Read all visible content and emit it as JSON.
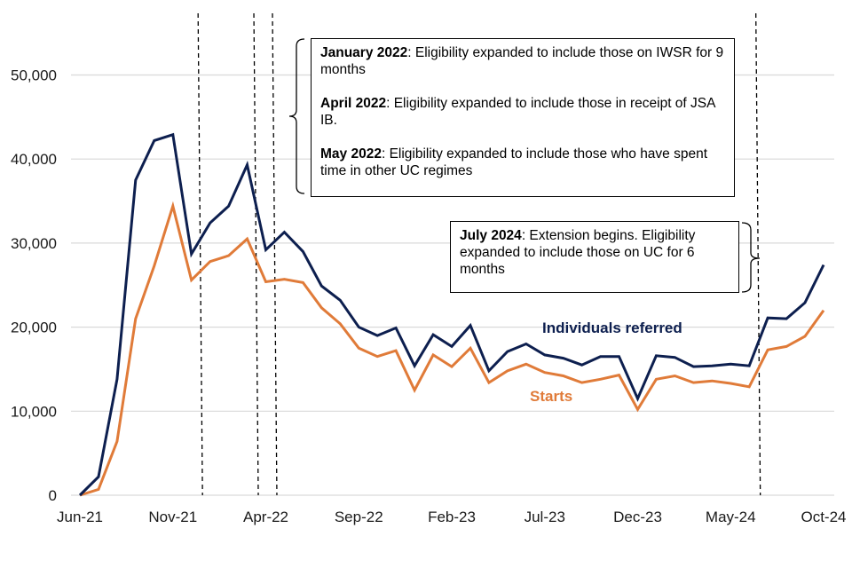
{
  "chart_data": {
    "type": "line",
    "title": "",
    "xlabel": "",
    "ylabel": "",
    "ylim": [
      0,
      55000
    ],
    "yticks": [
      0,
      10000,
      20000,
      30000,
      40000,
      50000
    ],
    "ytick_labels": [
      "0",
      "10,000",
      "20,000",
      "30,000",
      "40,000",
      "50,000"
    ],
    "grid": true,
    "x": [
      "Jun-21",
      "Jul-21",
      "Aug-21",
      "Sep-21",
      "Oct-21",
      "Nov-21",
      "Dec-21",
      "Jan-22",
      "Feb-22",
      "Mar-22",
      "Apr-22",
      "May-22",
      "Jun-22",
      "Jul-22",
      "Aug-22",
      "Sep-22",
      "Oct-22",
      "Nov-22",
      "Dec-22",
      "Jan-23",
      "Feb-23",
      "Mar-23",
      "Apr-23",
      "May-23",
      "Jun-23",
      "Jul-23",
      "Aug-23",
      "Sep-23",
      "Oct-23",
      "Nov-23",
      "Dec-23",
      "Jan-24",
      "Feb-24",
      "Mar-24",
      "Apr-24",
      "May-24",
      "Jun-24",
      "Jul-24",
      "Aug-24",
      "Sep-24",
      "Oct-24"
    ],
    "xtick_labels": [
      "Jun-21",
      "Nov-21",
      "Apr-22",
      "Sep-22",
      "Feb-23",
      "Jul-23",
      "Dec-23",
      "May-24",
      "Oct-24"
    ],
    "series": [
      {
        "name": "Individuals referred",
        "color": "#0d1f4f",
        "values": [
          0,
          2200,
          13800,
          37500,
          42200,
          42900,
          28700,
          32400,
          34400,
          39300,
          29200,
          31300,
          29000,
          24900,
          23200,
          20000,
          19000,
          19900,
          15400,
          19100,
          17700,
          20200,
          14800,
          17100,
          18000,
          16700,
          16300,
          15500,
          16500,
          16500,
          11500,
          16600,
          16400,
          15300,
          15400,
          15600,
          15400,
          21100,
          21000,
          22900,
          27400
        ]
      },
      {
        "name": "Starts",
        "color": "#e07b39",
        "values": [
          0,
          700,
          6400,
          21000,
          27300,
          34400,
          25600,
          27800,
          28500,
          30500,
          25400,
          25700,
          25300,
          22300,
          20400,
          17500,
          16500,
          17200,
          12500,
          16700,
          15300,
          17500,
          13400,
          14800,
          15600,
          14600,
          14200,
          13400,
          13800,
          14300,
          10200,
          13800,
          14200,
          13400,
          13600,
          13300,
          12900,
          17300,
          17700,
          18900,
          22000
        ]
      }
    ],
    "event_lines": [
      {
        "label": "January 2022",
        "between": [
          "Dec-21",
          "Jan-22"
        ]
      },
      {
        "label": "April 2022",
        "between": [
          "Mar-22",
          "Apr-22"
        ]
      },
      {
        "label": "May 2022",
        "between": [
          "Apr-22",
          "May-22"
        ]
      },
      {
        "label": "July 2024",
        "between": [
          "Jun-24",
          "Jul-24"
        ]
      }
    ],
    "legend": "inline-labels"
  },
  "annotations": {
    "group1": [
      {
        "bold": "January 2022",
        "text": ": Eligibility expanded to include those on IWSR for 9 months"
      },
      {
        "bold": "April 2022",
        "text": ": Eligibility expanded to include those in receipt of JSA IB."
      },
      {
        "bold": "May 2022",
        "text": ": Eligibility expanded to include those who have spent time in other UC regimes"
      }
    ],
    "group2": [
      {
        "bold": "July 2024",
        "text": ": Extension begins. Eligibility expanded to include those on UC for 6 months"
      }
    ]
  }
}
